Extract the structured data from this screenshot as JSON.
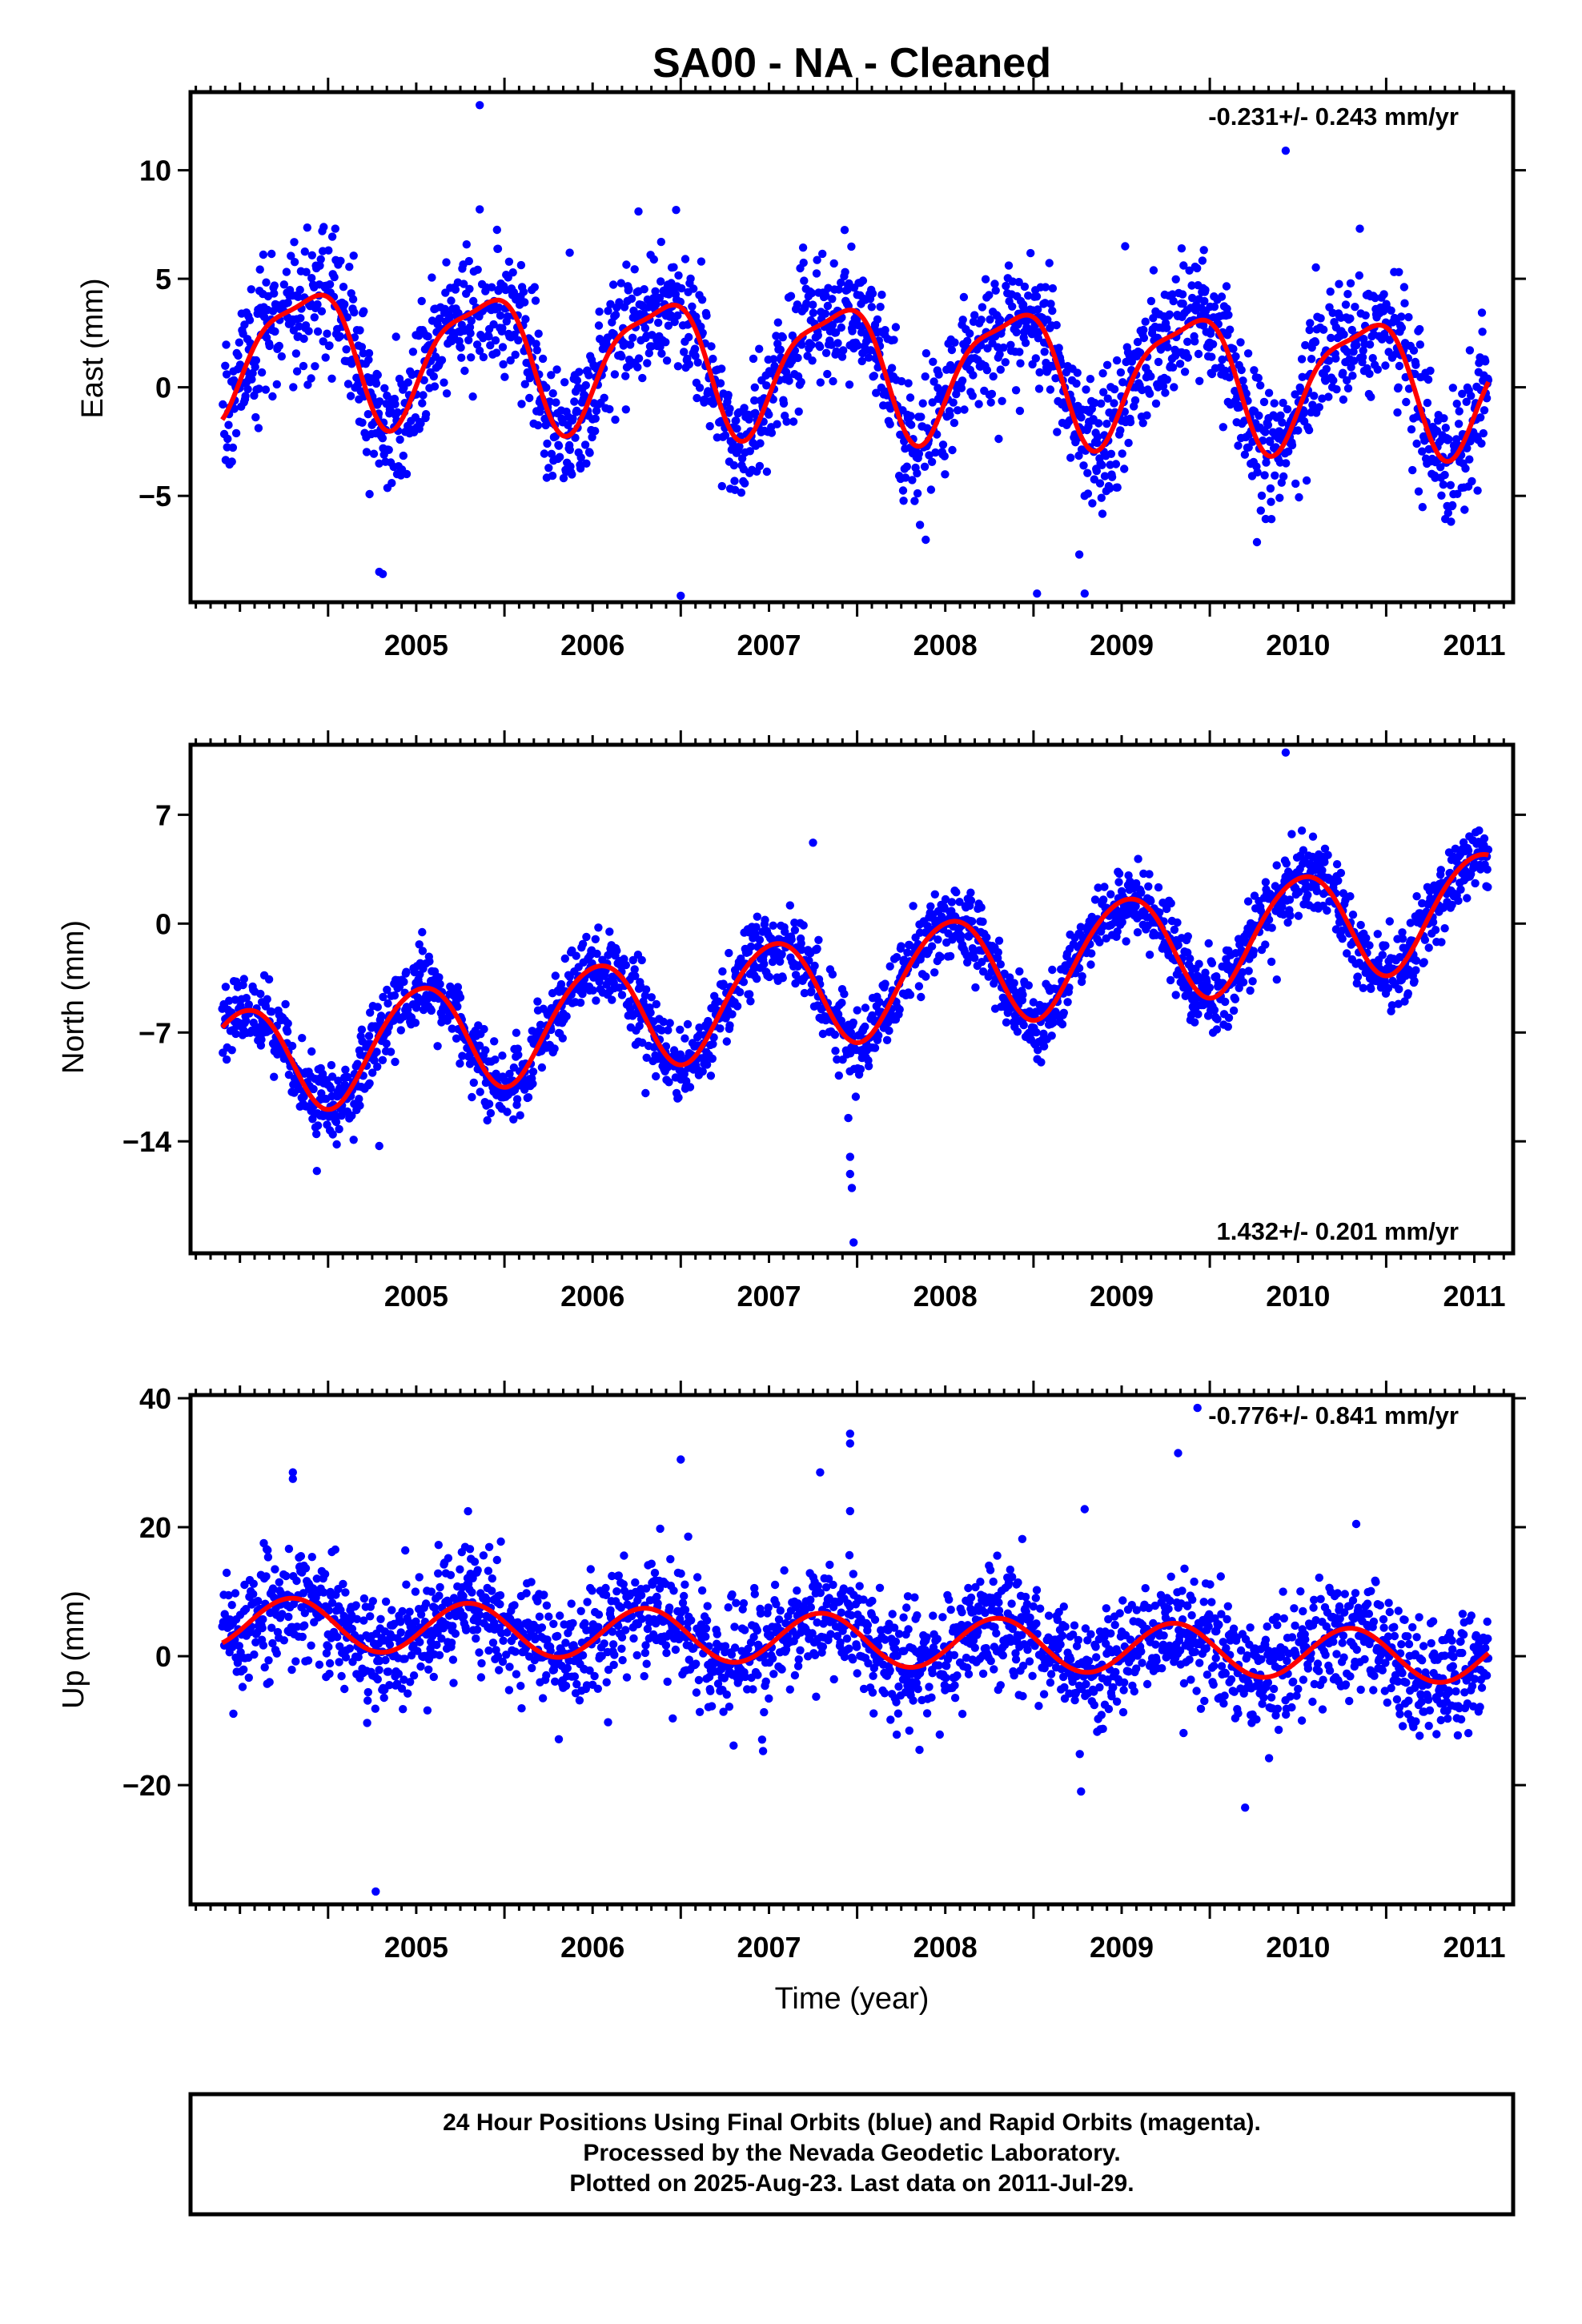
{
  "title": "SA00  - NA - Cleaned",
  "colors": {
    "final_orbits": "#0000ff",
    "model_fit": "#ff0000",
    "frame": "#000000"
  },
  "footer": {
    "line1": "24 Hour Positions Using Final Orbits (blue) and Rapid Orbits (magenta).",
    "line2": "Processed by the Nevada Geodetic Laboratory.",
    "line3": "Plotted on 2025-Aug-23. Last data on 2011-Jul-29."
  },
  "chart_data": [
    {
      "type": "scatter",
      "name": "east",
      "ylabel": "East (mm)",
      "xlabel": "",
      "rate_text": "-0.231+/- 0.243 mm/yr",
      "rate_position": "top-right",
      "xlim": [
        2004.22,
        2011.72
      ],
      "ylim": [
        -9.9,
        13.6
      ],
      "xticks": [
        2005,
        2006,
        2007,
        2008,
        2009,
        2010,
        2011
      ],
      "yticks": [
        -5,
        0,
        5,
        10
      ],
      "model": {
        "start": 2004.4,
        "end": 2011.58,
        "offset": 1.0,
        "rate_mm_yr": -0.231,
        "amp_annual": 2.9,
        "phase_annual": 0.62,
        "amp_semiannual": 0.8,
        "phase_semiannual": 0.45,
        "noise_sd": 1.5
      },
      "outliers": [
        [
          2005.86,
          13.0
        ],
        [
          2005.86,
          8.2
        ],
        [
          2006.76,
          8.1
        ],
        [
          2010.43,
          10.9
        ],
        [
          2005.29,
          -8.5
        ],
        [
          2005.31,
          -8.6
        ],
        [
          2007.0,
          -9.6
        ],
        [
          2009.02,
          -9.5
        ],
        [
          2009.29,
          -9.5
        ],
        [
          2009.26,
          -7.7
        ],
        [
          2006.37,
          6.2
        ],
        [
          2009.52,
          6.5
        ],
        [
          2009.84,
          6.4
        ]
      ]
    },
    {
      "type": "scatter",
      "name": "north",
      "ylabel": "North (mm)",
      "xlabel": "",
      "rate_text": "1.432+/- 0.201 mm/yr",
      "rate_position": "bottom-right",
      "xlim": [
        2004.22,
        2011.72
      ],
      "ylim": [
        -21.2,
        11.5
      ],
      "xticks": [
        2005,
        2006,
        2007,
        2008,
        2009,
        2010,
        2011
      ],
      "yticks": [
        -14,
        -7,
        0,
        7
      ],
      "model": {
        "start": 2004.4,
        "end": 2011.58,
        "offset": -3.9,
        "rate_mm_yr": 1.432,
        "amp_annual": 3.5,
        "phase_annual": 0.27,
        "amp_semiannual": 0.3,
        "phase_semiannual": 0.1,
        "noise_sd": 1.2
      },
      "outliers": [
        [
          2005.29,
          -14.3
        ],
        [
          2007.96,
          -15.0
        ],
        [
          2007.96,
          -16.1
        ],
        [
          2007.97,
          -17.0
        ],
        [
          2007.98,
          -20.5
        ],
        [
          2007.95,
          -12.5
        ],
        [
          2004.85,
          -11.2
        ],
        [
          2006.8,
          -10.9
        ],
        [
          2010.38,
          -3.6
        ],
        [
          2009.89,
          -6.2
        ],
        [
          2007.75,
          5.2
        ],
        [
          2010.43,
          11.0
        ]
      ]
    },
    {
      "type": "scatter",
      "name": "up",
      "ylabel": "Up (mm)",
      "xlabel": "Time (year)",
      "rate_text": "-0.776+/- 0.841 mm/yr",
      "rate_position": "top-right",
      "xlim": [
        2004.22,
        2011.72
      ],
      "ylim": [
        -38.5,
        40.5
      ],
      "xticks": [
        2005,
        2006,
        2007,
        2008,
        2009,
        2010,
        2011
      ],
      "yticks": [
        -20,
        0,
        20,
        40
      ],
      "model": {
        "start": 2004.4,
        "end": 2011.58,
        "offset": 2.5,
        "rate_mm_yr": -0.776,
        "amp_annual": 4.0,
        "phase_annual": 0.55,
        "amp_semiannual": 0.0,
        "phase_semiannual": 0.0,
        "noise_sd": 4.5
      },
      "outliers": [
        [
          2005.27,
          -36.5
        ],
        [
          2004.8,
          28.5
        ],
        [
          2004.8,
          27.5
        ],
        [
          2007.0,
          30.5
        ],
        [
          2007.96,
          34.5
        ],
        [
          2007.96,
          33.0
        ],
        [
          2007.79,
          28.5
        ],
        [
          2007.96,
          22.5
        ],
        [
          2009.29,
          22.8
        ],
        [
          2009.82,
          31.5
        ],
        [
          2009.93,
          38.5
        ],
        [
          2010.83,
          20.5
        ],
        [
          2009.27,
          -21.0
        ],
        [
          2010.2,
          -23.5
        ]
      ]
    }
  ]
}
